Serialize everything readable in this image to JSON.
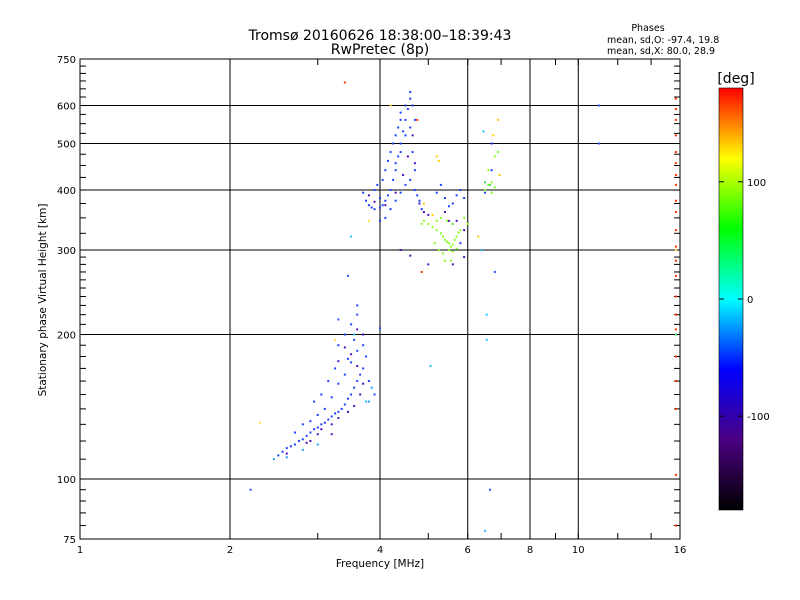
{
  "chart_data": {
    "type": "scatter",
    "title": "Tromsø 20160626 18:38:00–18:39:43",
    "subtitle": "RwPretec (8p)",
    "xlabel": "Frequency [MHz]",
    "ylabel": "Stationary phase Virtual Height [km]",
    "x_scale": "log",
    "y_scale": "log",
    "xlim": [
      1,
      16
    ],
    "ylim": [
      75,
      750
    ],
    "x_ticks": [
      1,
      2,
      4,
      6,
      8,
      10,
      16
    ],
    "x_tick_labels": [
      "1",
      "2",
      "4",
      "6",
      "8",
      "10",
      "16"
    ],
    "y_ticks": [
      75,
      100,
      200,
      300,
      400,
      500,
      600,
      750
    ],
    "y_tick_labels": [
      "75",
      "100",
      "200",
      "300",
      "400",
      "500",
      "600",
      "750"
    ],
    "grid": true,
    "phase_header": "Phases",
    "phase_stats": [
      "mean, sd,O: -97.4, 19.8",
      "mean, sd,X:  80.0, 28.9"
    ],
    "colorbar": {
      "label": "[deg]",
      "range": [
        -180,
        180
      ],
      "ticks": [
        100,
        0,
        -100
      ],
      "tick_labels": [
        "100",
        "0",
        "-100"
      ],
      "colors": [
        "#000000",
        "#4b0082",
        "#0000ff",
        "#00ffff",
        "#00ff00",
        "#ffff00",
        "#ff0000"
      ]
    },
    "series": [
      {
        "phase_color": "#2040ff",
        "points": [
          [
            2.5,
            112
          ],
          [
            2.55,
            114
          ],
          [
            2.6,
            116
          ],
          [
            2.65,
            117
          ],
          [
            2.7,
            118
          ],
          [
            2.75,
            120
          ],
          [
            2.8,
            121
          ],
          [
            2.85,
            123
          ],
          [
            2.9,
            125
          ],
          [
            2.95,
            127
          ],
          [
            3.0,
            128
          ],
          [
            3.05,
            130
          ],
          [
            3.1,
            131
          ],
          [
            3.15,
            133
          ],
          [
            3.2,
            135
          ],
          [
            3.25,
            137
          ],
          [
            3.3,
            138
          ],
          [
            3.35,
            140
          ],
          [
            3.4,
            143
          ],
          [
            3.45,
            147
          ],
          [
            3.5,
            150
          ],
          [
            3.55,
            155
          ],
          [
            3.6,
            160
          ],
          [
            3.65,
            165
          ],
          [
            3.7,
            170
          ],
          [
            2.7,
            125
          ],
          [
            2.8,
            130
          ],
          [
            2.9,
            132
          ],
          [
            3.0,
            136
          ],
          [
            3.1,
            140
          ],
          [
            3.2,
            148
          ],
          [
            3.3,
            158
          ],
          [
            3.4,
            165
          ],
          [
            3.5,
            175
          ],
          [
            3.6,
            185
          ],
          [
            3.7,
            190
          ],
          [
            3.75,
            180
          ],
          [
            3.3,
            190
          ],
          [
            3.4,
            200
          ],
          [
            3.5,
            210
          ],
          [
            3.6,
            230
          ],
          [
            3.55,
            195
          ],
          [
            3.45,
            178
          ],
          [
            3.25,
            170
          ],
          [
            3.15,
            160
          ],
          [
            3.05,
            150
          ],
          [
            2.95,
            145
          ],
          [
            3.8,
            160
          ],
          [
            3.9,
            150
          ]
        ]
      },
      {
        "phase_color": "#5010c0",
        "points": [
          [
            2.6,
            113
          ],
          [
            2.85,
            119
          ],
          [
            3.05,
            127
          ],
          [
            3.2,
            130
          ],
          [
            3.3,
            134
          ],
          [
            3.45,
            138
          ],
          [
            3.55,
            142
          ],
          [
            3.65,
            150
          ],
          [
            3.7,
            158
          ],
          [
            3.6,
            172
          ],
          [
            3.5,
            182
          ],
          [
            3.4,
            188
          ],
          [
            3.3,
            176
          ],
          [
            3.7,
            200
          ],
          [
            3.6,
            205
          ],
          [
            3.2,
            124
          ],
          [
            3.0,
            124
          ],
          [
            2.9,
            120
          ]
        ]
      },
      {
        "phase_color": "#20a0ff",
        "points": [
          [
            2.45,
            110
          ],
          [
            2.6,
            111
          ],
          [
            2.8,
            115
          ],
          [
            3.0,
            118
          ],
          [
            3.8,
            145
          ],
          [
            3.85,
            155
          ]
        ]
      },
      {
        "phase_color": "#2040ff",
        "points": [
          [
            3.7,
            395
          ],
          [
            3.75,
            380
          ],
          [
            3.8,
            372
          ],
          [
            3.85,
            368
          ],
          [
            3.9,
            365
          ],
          [
            4.0,
            368
          ],
          [
            4.05,
            372
          ],
          [
            4.1,
            380
          ],
          [
            4.15,
            390
          ],
          [
            4.2,
            400
          ],
          [
            4.25,
            420
          ],
          [
            4.3,
            440
          ],
          [
            4.35,
            470
          ],
          [
            4.4,
            500
          ],
          [
            4.45,
            530
          ],
          [
            4.5,
            560
          ],
          [
            4.55,
            590
          ],
          [
            4.6,
            620
          ],
          [
            4.65,
            600
          ],
          [
            4.5,
            520
          ],
          [
            4.4,
            480
          ],
          [
            4.3,
            455
          ],
          [
            4.6,
            540
          ],
          [
            4.65,
            480
          ],
          [
            4.7,
            440
          ],
          [
            4.6,
            420
          ],
          [
            4.5,
            410
          ],
          [
            4.4,
            395
          ],
          [
            4.3,
            380
          ],
          [
            4.2,
            365
          ],
          [
            4.1,
            350
          ],
          [
            4.0,
            345
          ],
          [
            4.05,
            420
          ],
          [
            4.1,
            440
          ],
          [
            4.15,
            460
          ],
          [
            4.2,
            480
          ],
          [
            4.25,
            500
          ],
          [
            4.3,
            520
          ],
          [
            4.35,
            540
          ],
          [
            4.4,
            560
          ],
          [
            4.7,
            400
          ],
          [
            4.75,
            390
          ],
          [
            4.8,
            380
          ],
          [
            4.85,
            365
          ],
          [
            3.9,
            400
          ],
          [
            3.95,
            410
          ],
          [
            4.0,
            385
          ],
          [
            4.4,
            580
          ],
          [
            4.5,
            600
          ],
          [
            4.6,
            640
          ],
          [
            4.7,
            560
          ],
          [
            5.2,
            395
          ],
          [
            5.3,
            410
          ],
          [
            5.4,
            385
          ],
          [
            5.5,
            370
          ],
          [
            5.6,
            375
          ],
          [
            5.7,
            390
          ],
          [
            5.8,
            400
          ],
          [
            5.9,
            385
          ],
          [
            5.6,
            340
          ],
          [
            5.8,
            310
          ],
          [
            6.7,
            500
          ],
          [
            6.7,
            440
          ],
          [
            6.5,
            395
          ]
        ]
      },
      {
        "phase_color": "#5010c0",
        "points": [
          [
            3.8,
            390
          ],
          [
            3.9,
            378
          ],
          [
            4.1,
            372
          ],
          [
            4.3,
            395
          ],
          [
            4.45,
            430
          ],
          [
            4.55,
            470
          ],
          [
            4.65,
            520
          ],
          [
            4.7,
            455
          ],
          [
            4.8,
            375
          ],
          [
            4.9,
            360
          ],
          [
            5.0,
            355
          ],
          [
            5.4,
            360
          ],
          [
            5.5,
            345
          ],
          [
            5.7,
            345
          ],
          [
            5.9,
            330
          ],
          [
            4.4,
            300
          ],
          [
            4.6,
            292
          ],
          [
            5.0,
            280
          ],
          [
            5.6,
            280
          ],
          [
            5.9,
            290
          ]
        ]
      },
      {
        "phase_color": "#88ff22",
        "points": [
          [
            5.0,
            340
          ],
          [
            5.1,
            335
          ],
          [
            5.2,
            330
          ],
          [
            5.3,
            325
          ],
          [
            5.35,
            320
          ],
          [
            5.4,
            315
          ],
          [
            5.45,
            312
          ],
          [
            5.5,
            310
          ],
          [
            5.55,
            305
          ],
          [
            5.6,
            308
          ],
          [
            5.65,
            315
          ],
          [
            5.7,
            320
          ],
          [
            5.75,
            326
          ],
          [
            5.8,
            330
          ],
          [
            5.3,
            350
          ],
          [
            5.45,
            345
          ],
          [
            5.6,
            340
          ],
          [
            5.2,
            345
          ],
          [
            5.15,
            310
          ],
          [
            5.25,
            300
          ],
          [
            5.35,
            295
          ],
          [
            5.5,
            300
          ],
          [
            5.6,
            298
          ],
          [
            5.7,
            302
          ],
          [
            5.4,
            285
          ],
          [
            5.55,
            285
          ],
          [
            6.5,
            400
          ],
          [
            6.6,
            410
          ],
          [
            6.7,
            415
          ],
          [
            6.8,
            405
          ],
          [
            6.7,
            395
          ],
          [
            6.6,
            440
          ],
          [
            6.8,
            470
          ],
          [
            6.9,
            480
          ],
          [
            5.9,
            350
          ],
          [
            6.0,
            340
          ],
          [
            4.85,
            340
          ],
          [
            4.9,
            345
          ]
        ]
      },
      {
        "phase_color": "#ffd000",
        "points": [
          [
            6.9,
            560
          ],
          [
            6.75,
            520
          ],
          [
            5.1,
            355
          ],
          [
            5.25,
            460
          ],
          [
            5.2,
            470
          ],
          [
            4.9,
            375
          ],
          [
            6.3,
            320
          ],
          [
            6.95,
            430
          ]
        ]
      },
      {
        "phase_color": "#ff3000",
        "points": [
          [
            3.4,
            670
          ],
          [
            4.75,
            560
          ],
          [
            4.85,
            270
          ],
          [
            15.7,
            620
          ],
          [
            15.7,
            590
          ],
          [
            15.7,
            560
          ],
          [
            15.7,
            520
          ],
          [
            15.7,
            480
          ],
          [
            15.7,
            455
          ],
          [
            15.7,
            430
          ],
          [
            15.7,
            410
          ],
          [
            15.7,
            380
          ],
          [
            15.7,
            360
          ],
          [
            15.7,
            330
          ],
          [
            15.7,
            305
          ],
          [
            15.7,
            285
          ],
          [
            15.7,
            265
          ],
          [
            15.7,
            240
          ],
          [
            15.7,
            220
          ],
          [
            15.7,
            205
          ],
          [
            15.7,
            180
          ],
          [
            15.7,
            160
          ],
          [
            15.7,
            140
          ],
          [
            15.7,
            102
          ],
          [
            15.7,
            80
          ]
        ]
      },
      {
        "phase_color": "#20c0ff",
        "points": [
          [
            6.5,
            78
          ],
          [
            6.55,
            195
          ],
          [
            6.55,
            220
          ],
          [
            6.45,
            530
          ],
          [
            5.05,
            172
          ],
          [
            3.75,
            145
          ],
          [
            6.4,
            300
          ],
          [
            3.5,
            320
          ],
          [
            3.55,
            200
          ]
        ]
      },
      {
        "phase_color": "#3050ff",
        "points": [
          [
            2.2,
            95
          ],
          [
            6.65,
            95
          ],
          [
            11.0,
            600
          ],
          [
            11.0,
            500
          ],
          [
            4.0,
            206
          ],
          [
            6.8,
            270
          ],
          [
            3.45,
            265
          ],
          [
            3.6,
            220
          ],
          [
            3.3,
            215
          ]
        ]
      },
      {
        "phase_color": "#ffe040",
        "points": [
          [
            2.3,
            131
          ],
          [
            3.25,
            195
          ],
          [
            3.8,
            345
          ],
          [
            4.2,
            600
          ],
          [
            15.7,
            300
          ]
        ]
      },
      {
        "phase_color": "#40e060",
        "points": [
          [
            15.7,
            200
          ],
          [
            6.65,
            410
          ],
          [
            6.5,
            415
          ]
        ]
      }
    ]
  }
}
